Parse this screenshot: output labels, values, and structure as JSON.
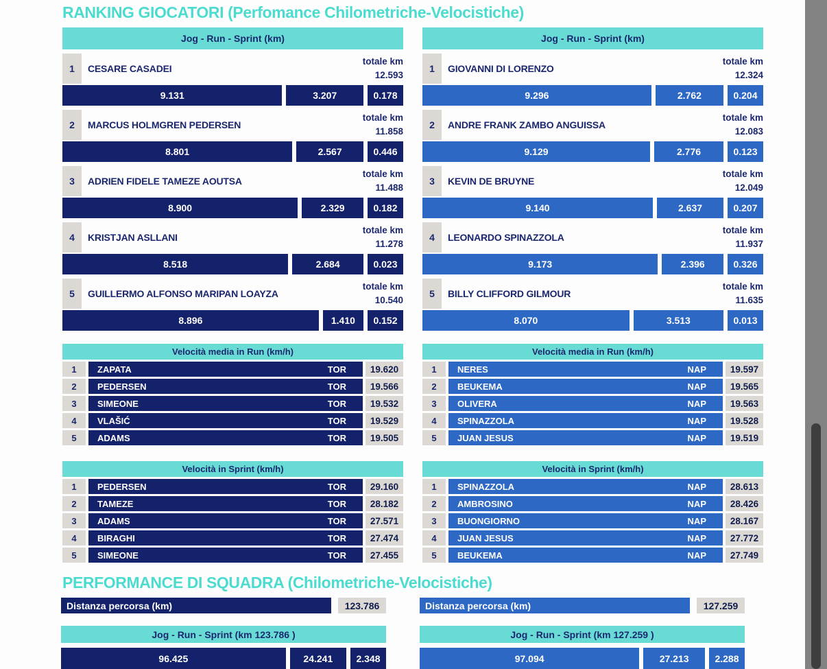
{
  "titles": {
    "ranking": "RANKING GIOCATORI (Perfomance Chilometriche-Velocistiche)",
    "squad": "PERFORMANCE DI SQUADRA (Chilometriche-Velocistiche)"
  },
  "labels": {
    "jog_run_sprint_header": "Jog - Run - Sprint (km)",
    "totale_km": "totale km",
    "run_speed_header": "Velocità media in Run (km/h)",
    "sprint_speed_header": "Velocità in Sprint (km/h)",
    "distance_label": "Distanza percorsa (km)"
  },
  "colors": {
    "tor_bar": "#14216b",
    "nap_bar": "#2d68c5",
    "teal_header": "#68dcd4",
    "title_teal": "#4cdccf",
    "gray_box": "#dcd9d4",
    "text_navy": "#1b276e"
  },
  "columns": [
    {
      "team_code": "TOR",
      "theme": "navy",
      "players": [
        {
          "rank": "1",
          "name": "CESARE CASADEI",
          "total": "12.593",
          "jog": "9.131",
          "run": "3.207",
          "sprint": "0.178"
        },
        {
          "rank": "2",
          "name": "MARCUS HOLMGREN PEDERSEN",
          "total": "11.858",
          "jog": "8.801",
          "run": "2.567",
          "sprint": "0.446"
        },
        {
          "rank": "3",
          "name": "ADRIEN FIDELE TAMEZE AOUTSA",
          "total": "11.488",
          "jog": "8.900",
          "run": "2.329",
          "sprint": "0.182"
        },
        {
          "rank": "4",
          "name": "KRISTJAN ASLLANI",
          "total": "11.278",
          "jog": "8.518",
          "run": "2.684",
          "sprint": "0.023"
        },
        {
          "rank": "5",
          "name": "GUILLERMO ALFONSO MARIPAN LOAYZA",
          "total": "10.540",
          "jog": "8.896",
          "run": "1.410",
          "sprint": "0.152"
        }
      ],
      "run_speed": [
        {
          "rank": "1",
          "name": "ZAPATA",
          "team": "TOR",
          "value": "19.620"
        },
        {
          "rank": "2",
          "name": "PEDERSEN",
          "team": "TOR",
          "value": "19.566"
        },
        {
          "rank": "3",
          "name": "SIMEONE",
          "team": "TOR",
          "value": "19.532"
        },
        {
          "rank": "4",
          "name": "VLAŠIĆ",
          "team": "TOR",
          "value": "19.529"
        },
        {
          "rank": "5",
          "name": "ADAMS",
          "team": "TOR",
          "value": "19.505"
        }
      ],
      "sprint_speed": [
        {
          "rank": "1",
          "name": "PEDERSEN",
          "team": "TOR",
          "value": "29.160"
        },
        {
          "rank": "2",
          "name": "TAMEZE",
          "team": "TOR",
          "value": "28.182"
        },
        {
          "rank": "3",
          "name": "ADAMS",
          "team": "TOR",
          "value": "27.571"
        },
        {
          "rank": "4",
          "name": "BIRAGHI",
          "team": "TOR",
          "value": "27.474"
        },
        {
          "rank": "5",
          "name": "SIMEONE",
          "team": "TOR",
          "value": "27.455"
        }
      ],
      "distance_value": "123.786",
      "team_bar_header": "Jog - Run - Sprint (km 123.786 )",
      "team_jog": "96.425",
      "team_run": "24.241",
      "team_sprint": "2.348"
    },
    {
      "team_code": "NAP",
      "theme": "blue",
      "players": [
        {
          "rank": "1",
          "name": "GIOVANNI DI LORENZO",
          "total": "12.324",
          "jog": "9.296",
          "run": "2.762",
          "sprint": "0.204"
        },
        {
          "rank": "2",
          "name": "ANDRE FRANK ZAMBO ANGUISSA",
          "total": "12.083",
          "jog": "9.129",
          "run": "2.776",
          "sprint": "0.123"
        },
        {
          "rank": "3",
          "name": "KEVIN DE BRUYNE",
          "total": "12.049",
          "jog": "9.140",
          "run": "2.637",
          "sprint": "0.207"
        },
        {
          "rank": "4",
          "name": "LEONARDO SPINAZZOLA",
          "total": "11.937",
          "jog": "9.173",
          "run": "2.396",
          "sprint": "0.326"
        },
        {
          "rank": "5",
          "name": "BILLY CLIFFORD GILMOUR",
          "total": "11.635",
          "jog": "8.070",
          "run": "3.513",
          "sprint": "0.013"
        }
      ],
      "run_speed": [
        {
          "rank": "1",
          "name": "NERES",
          "team": "NAP",
          "value": "19.597"
        },
        {
          "rank": "2",
          "name": "BEUKEMA",
          "team": "NAP",
          "value": "19.565"
        },
        {
          "rank": "3",
          "name": "OLIVERA",
          "team": "NAP",
          "value": "19.563"
        },
        {
          "rank": "4",
          "name": "SPINAZZOLA",
          "team": "NAP",
          "value": "19.528"
        },
        {
          "rank": "5",
          "name": "JUAN JESUS",
          "team": "NAP",
          "value": "19.519"
        }
      ],
      "sprint_speed": [
        {
          "rank": "1",
          "name": "SPINAZZOLA",
          "team": "NAP",
          "value": "28.613"
        },
        {
          "rank": "2",
          "name": "AMBROSINO",
          "team": "NAP",
          "value": "28.426"
        },
        {
          "rank": "3",
          "name": "BUONGIORNO",
          "team": "NAP",
          "value": "28.167"
        },
        {
          "rank": "4",
          "name": "JUAN JESUS",
          "team": "NAP",
          "value": "27.772"
        },
        {
          "rank": "5",
          "name": "BEUKEMA",
          "team": "NAP",
          "value": "27.749"
        }
      ],
      "distance_value": "127.259",
      "team_bar_header": "Jog - Run - Sprint (km 127.259 )",
      "team_jog": "97.094",
      "team_run": "27.213",
      "team_sprint": "2.288"
    }
  ]
}
